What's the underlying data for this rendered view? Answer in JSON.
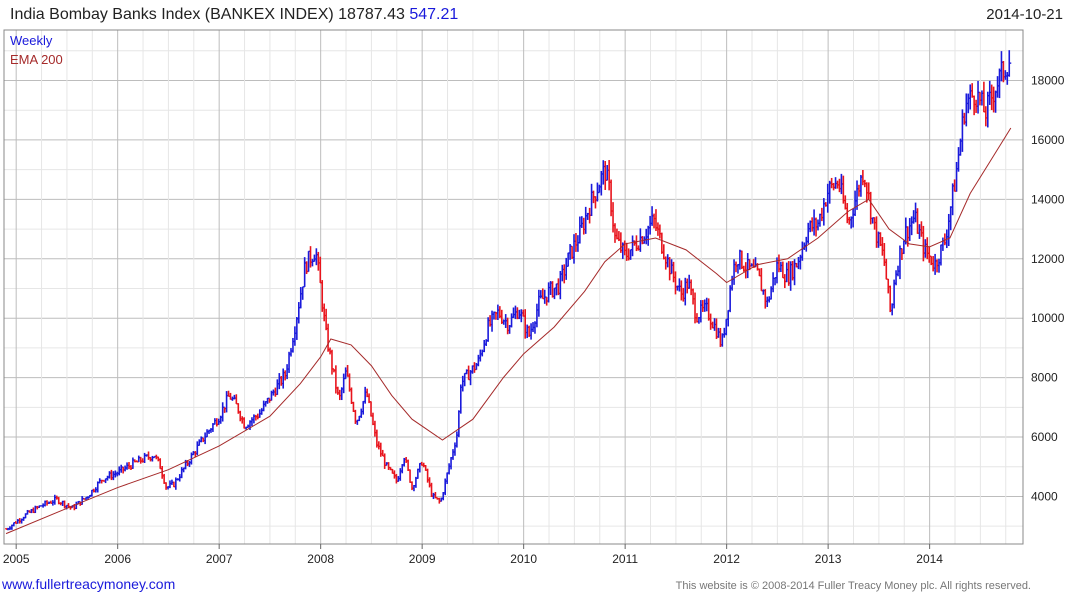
{
  "header": {
    "title": "India Bombay Banks Index (BANKEX INDEX)",
    "last": "18787.43",
    "change": "547.21",
    "date": "2014-10-21"
  },
  "footer": {
    "website": "www.fullertreacymoney.com",
    "copyright": "This website is © 2008-2014 Fuller Treacy Money plc. All rights reserved."
  },
  "colors": {
    "up": "#1a1adb",
    "down": "#e8141c",
    "ema": "#a52a2a",
    "grid": "#d0d0d0"
  },
  "chart_data": {
    "type": "line",
    "grid": true,
    "legend_position": "top-left",
    "legend": [
      "Weekly",
      "EMA 200"
    ],
    "xlim": [
      2004.88,
      2014.92
    ],
    "ylim": [
      2400,
      19700
    ],
    "x_ticks": [
      "2005",
      "2006",
      "2007",
      "2008",
      "2009",
      "2010",
      "2011",
      "2012",
      "2013",
      "2014"
    ],
    "y_ticks": [
      4000,
      6000,
      8000,
      10000,
      12000,
      14000,
      16000,
      18000
    ],
    "series": [
      {
        "name": "Weekly",
        "x": [
          2004.9,
          2005.1,
          2005.25,
          2005.4,
          2005.55,
          2005.7,
          2005.85,
          2006.0,
          2006.15,
          2006.28,
          2006.36,
          2006.42,
          2006.48,
          2006.55,
          2006.7,
          2006.85,
          2007.0,
          2007.1,
          2007.18,
          2007.25,
          2007.4,
          2007.55,
          2007.65,
          2007.75,
          2007.85,
          2007.95,
          2008.0,
          2008.05,
          2008.1,
          2008.18,
          2008.25,
          2008.35,
          2008.45,
          2008.55,
          2008.65,
          2008.75,
          2008.82,
          2008.9,
          2009.0,
          2009.1,
          2009.18,
          2009.25,
          2009.35,
          2009.38,
          2009.45,
          2009.55,
          2009.65,
          2009.75,
          2009.85,
          2009.95,
          2010.05,
          2010.15,
          2010.25,
          2010.35,
          2010.45,
          2010.55,
          2010.65,
          2010.75,
          2010.8,
          2010.85,
          2010.9,
          2011.0,
          2011.1,
          2011.2,
          2011.28,
          2011.35,
          2011.45,
          2011.55,
          2011.62,
          2011.7,
          2011.8,
          2011.9,
          2011.95,
          2012.0,
          2012.05,
          2012.1,
          2012.2,
          2012.3,
          2012.4,
          2012.5,
          2012.6,
          2012.7,
          2012.8,
          2012.9,
          2013.0,
          2013.1,
          2013.2,
          2013.3,
          2013.35,
          2013.45,
          2013.55,
          2013.62,
          2013.65,
          2013.75,
          2013.85,
          2013.95,
          2014.05,
          2014.15,
          2014.25,
          2014.35,
          2014.45,
          2014.55,
          2014.65,
          2014.72,
          2014.8
        ],
        "values": [
          2900,
          3400,
          3700,
          3900,
          3600,
          4000,
          4600,
          4800,
          5100,
          5300,
          5400,
          5000,
          4300,
          4400,
          5200,
          6000,
          6700,
          7400,
          7000,
          6400,
          6800,
          7600,
          8100,
          9800,
          11800,
          12300,
          11000,
          9500,
          8600,
          7200,
          8200,
          6500,
          7500,
          5800,
          5000,
          4500,
          5400,
          4300,
          5200,
          4000,
          3800,
          4800,
          6200,
          7800,
          8100,
          8500,
          9700,
          10200,
          9800,
          10300,
          9400,
          10500,
          10900,
          11100,
          12100,
          12800,
          13800,
          14600,
          15000,
          14200,
          12700,
          12100,
          12500,
          12900,
          13300,
          12600,
          11600,
          10800,
          11200,
          10100,
          10300,
          9600,
          9100,
          10100,
          11400,
          12100,
          11700,
          11500,
          10500,
          11800,
          11400,
          11900,
          13000,
          13200,
          14300,
          14600,
          13200,
          14400,
          15000,
          13100,
          12000,
          10000,
          11300,
          12800,
          13400,
          12300,
          11800,
          12600,
          14600,
          17200,
          17600,
          16900,
          17800,
          18300,
          18787
        ]
      },
      {
        "name": "EMA 200",
        "x": [
          2004.9,
          2005.5,
          2006.0,
          2006.5,
          2007.0,
          2007.5,
          2007.8,
          2008.0,
          2008.1,
          2008.3,
          2008.5,
          2008.7,
          2008.9,
          2009.2,
          2009.5,
          2009.8,
          2010.0,
          2010.3,
          2010.6,
          2010.8,
          2011.0,
          2011.3,
          2011.6,
          2011.9,
          2012.0,
          2012.3,
          2012.6,
          2012.9,
          2013.2,
          2013.4,
          2013.6,
          2013.8,
          2014.0,
          2014.2,
          2014.4,
          2014.6,
          2014.8
        ],
        "values": [
          2750,
          3600,
          4300,
          4900,
          5700,
          6700,
          7800,
          8700,
          9300,
          9100,
          8400,
          7400,
          6600,
          5900,
          6600,
          8000,
          8800,
          9700,
          10900,
          11900,
          12500,
          12700,
          12300,
          11500,
          11200,
          11800,
          12000,
          12700,
          13600,
          14000,
          13000,
          12500,
          12400,
          12700,
          14200,
          15300,
          16400
        ]
      }
    ]
  }
}
